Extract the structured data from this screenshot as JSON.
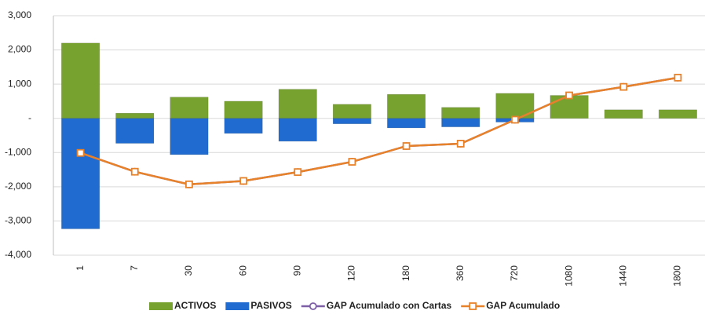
{
  "chart_data": {
    "type": "bar-line",
    "categories": [
      "1",
      "7",
      "30",
      "60",
      "90",
      "120",
      "180",
      "360",
      "720",
      "1080",
      "1440",
      "1800"
    ],
    "series": [
      {
        "name": "ACTIVOS",
        "kind": "bar",
        "color": "#78a22f",
        "values": [
          2200,
          150,
          620,
          500,
          850,
          410,
          700,
          320,
          730,
          670,
          250,
          250
        ]
      },
      {
        "name": "PASIVOS",
        "kind": "bar",
        "color": "#1f6bd0",
        "values": [
          -3230,
          -730,
          -1060,
          -440,
          -670,
          -160,
          -280,
          -250,
          -110,
          0,
          0,
          0
        ]
      },
      {
        "name": "GAP Acumulado con Cartas",
        "kind": "line",
        "marker": "circle",
        "color": "#7d5fa6",
        "values": [
          -1010,
          -1560,
          -1930,
          -1830,
          -1570,
          -1270,
          -810,
          -740,
          -40,
          670,
          920,
          1190
        ]
      },
      {
        "name": "GAP Acumulado",
        "kind": "line",
        "marker": "square",
        "color": "#e8822a",
        "values": [
          -1010,
          -1560,
          -1930,
          -1830,
          -1570,
          -1270,
          -810,
          -740,
          -40,
          670,
          920,
          1190
        ]
      }
    ],
    "ylim": [
      -4000,
      3000
    ],
    "yticks": [
      {
        "value": -4000,
        "label": "-4,000"
      },
      {
        "value": -3000,
        "label": "-3,000"
      },
      {
        "value": -2000,
        "label": "-2,000"
      },
      {
        "value": -1000,
        "label": "-1,000"
      },
      {
        "value": 0,
        "label": "-"
      },
      {
        "value": 1000,
        "label": "1,000"
      },
      {
        "value": 2000,
        "label": "2,000"
      },
      {
        "value": 3000,
        "label": "3,000"
      }
    ],
    "grid": true,
    "legend": "bottom"
  }
}
